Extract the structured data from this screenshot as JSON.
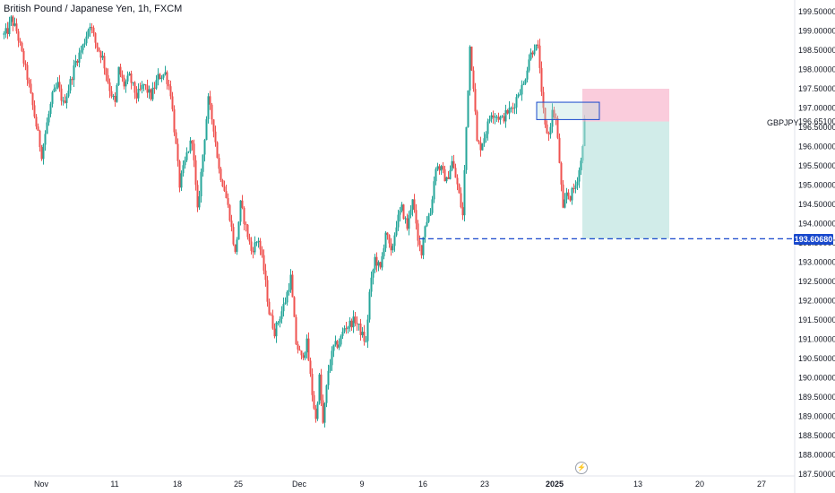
{
  "header": {
    "title": "British Pound / Japanese Yen, 1h, FXCM"
  },
  "symbol": "GBPJPY",
  "colors": {
    "up": "#26a69a",
    "down": "#ef5350",
    "line": "#1848cc",
    "target": "#b2dfdb",
    "stop": "#f8bbd0"
  },
  "icons": {
    "flash": "lightning-icon"
  },
  "chart_data": {
    "type": "candlestick",
    "title": "British Pound / Japanese Yen, 1h, FXCM",
    "xlabel": "",
    "ylabel": "",
    "ylim": [
      187.5,
      199.5
    ],
    "y_ticks": [
      "199.50000",
      "199.00000",
      "198.50000",
      "198.00000",
      "197.50000",
      "197.00000",
      "196.50000",
      "196.00000",
      "195.50000",
      "195.00000",
      "194.50000",
      "194.00000",
      "193.50000",
      "193.00000",
      "192.50000",
      "192.00000",
      "191.50000",
      "191.00000",
      "190.50000",
      "190.00000",
      "189.50000",
      "189.00000",
      "188.50000",
      "188.00000",
      "187.50000"
    ],
    "x_ticks": [
      "Nov",
      "11",
      "18",
      "25",
      "Dec",
      "9",
      "16",
      "23",
      "2025",
      "13",
      "20",
      "27"
    ],
    "x_ticks_bold": [
      "2025"
    ],
    "current_price_label": "196.65100",
    "horizontal_line": {
      "value": 193.6068,
      "label": "193.60680"
    },
    "position": {
      "entry": 196.65,
      "stop": 197.5,
      "target": 193.6068
    },
    "zone": {
      "low": 196.7,
      "high": 197.15
    },
    "series": [
      {
        "name": "GBPJPY",
        "waypoints": [
          {
            "t": 0,
            "p": 198.9
          },
          {
            "t": 4,
            "p": 199.0
          },
          {
            "t": 8,
            "p": 199.3
          },
          {
            "t": 14,
            "p": 199.0
          },
          {
            "t": 20,
            "p": 198.4
          },
          {
            "t": 26,
            "p": 197.8
          },
          {
            "t": 34,
            "p": 196.8
          },
          {
            "t": 42,
            "p": 195.8
          },
          {
            "t": 48,
            "p": 196.6
          },
          {
            "t": 54,
            "p": 197.3
          },
          {
            "t": 60,
            "p": 197.6
          },
          {
            "t": 66,
            "p": 197.1
          },
          {
            "t": 72,
            "p": 197.5
          },
          {
            "t": 80,
            "p": 198.2
          },
          {
            "t": 88,
            "p": 198.6
          },
          {
            "t": 96,
            "p": 199.2
          },
          {
            "t": 102,
            "p": 198.7
          },
          {
            "t": 110,
            "p": 198.3
          },
          {
            "t": 118,
            "p": 197.5
          },
          {
            "t": 124,
            "p": 197.1
          },
          {
            "t": 128,
            "p": 198.0
          },
          {
            "t": 134,
            "p": 197.6
          },
          {
            "t": 140,
            "p": 197.8
          },
          {
            "t": 148,
            "p": 197.3
          },
          {
            "t": 156,
            "p": 197.6
          },
          {
            "t": 164,
            "p": 197.3
          },
          {
            "t": 172,
            "p": 197.8
          },
          {
            "t": 180,
            "p": 197.9
          },
          {
            "t": 186,
            "p": 197.4
          },
          {
            "t": 192,
            "p": 196.0
          },
          {
            "t": 196,
            "p": 195.0
          },
          {
            "t": 204,
            "p": 195.8
          },
          {
            "t": 210,
            "p": 196.2
          },
          {
            "t": 216,
            "p": 194.3
          },
          {
            "t": 222,
            "p": 195.8
          },
          {
            "t": 228,
            "p": 197.2
          },
          {
            "t": 234,
            "p": 196.5
          },
          {
            "t": 240,
            "p": 195.4
          },
          {
            "t": 246,
            "p": 194.9
          },
          {
            "t": 252,
            "p": 194.2
          },
          {
            "t": 258,
            "p": 193.2
          },
          {
            "t": 264,
            "p": 194.5
          },
          {
            "t": 270,
            "p": 193.9
          },
          {
            "t": 276,
            "p": 193.3
          },
          {
            "t": 284,
            "p": 193.6
          },
          {
            "t": 290,
            "p": 192.8
          },
          {
            "t": 296,
            "p": 191.7
          },
          {
            "t": 302,
            "p": 191.2
          },
          {
            "t": 308,
            "p": 191.6
          },
          {
            "t": 314,
            "p": 192.0
          },
          {
            "t": 320,
            "p": 192.6
          },
          {
            "t": 326,
            "p": 190.9
          },
          {
            "t": 332,
            "p": 190.5
          },
          {
            "t": 338,
            "p": 190.9
          },
          {
            "t": 344,
            "p": 189.6
          },
          {
            "t": 348,
            "p": 188.9
          },
          {
            "t": 352,
            "p": 190.0
          },
          {
            "t": 356,
            "p": 188.8
          },
          {
            "t": 362,
            "p": 190.2
          },
          {
            "t": 368,
            "p": 190.8
          },
          {
            "t": 374,
            "p": 190.9
          },
          {
            "t": 380,
            "p": 191.3
          },
          {
            "t": 386,
            "p": 191.4
          },
          {
            "t": 392,
            "p": 191.5
          },
          {
            "t": 398,
            "p": 191.2
          },
          {
            "t": 404,
            "p": 190.9
          },
          {
            "t": 408,
            "p": 192.2
          },
          {
            "t": 414,
            "p": 193.1
          },
          {
            "t": 420,
            "p": 192.8
          },
          {
            "t": 426,
            "p": 193.8
          },
          {
            "t": 432,
            "p": 193.2
          },
          {
            "t": 438,
            "p": 194.0
          },
          {
            "t": 444,
            "p": 194.4
          },
          {
            "t": 450,
            "p": 193.9
          },
          {
            "t": 456,
            "p": 194.7
          },
          {
            "t": 462,
            "p": 193.5
          },
          {
            "t": 466,
            "p": 193.3
          },
          {
            "t": 470,
            "p": 194.0
          },
          {
            "t": 476,
            "p": 194.3
          },
          {
            "t": 482,
            "p": 195.5
          },
          {
            "t": 488,
            "p": 195.4
          },
          {
            "t": 494,
            "p": 195.1
          },
          {
            "t": 500,
            "p": 195.6
          },
          {
            "t": 506,
            "p": 195.0
          },
          {
            "t": 512,
            "p": 194.2
          },
          {
            "t": 516,
            "p": 196.5
          },
          {
            "t": 520,
            "p": 198.6
          },
          {
            "t": 524,
            "p": 197.6
          },
          {
            "t": 528,
            "p": 196.1
          },
          {
            "t": 532,
            "p": 196.0
          },
          {
            "t": 538,
            "p": 196.4
          },
          {
            "t": 544,
            "p": 196.9
          },
          {
            "t": 550,
            "p": 196.8
          },
          {
            "t": 556,
            "p": 196.7
          },
          {
            "t": 562,
            "p": 196.9
          },
          {
            "t": 568,
            "p": 197.0
          },
          {
            "t": 574,
            "p": 197.4
          },
          {
            "t": 580,
            "p": 197.6
          },
          {
            "t": 586,
            "p": 198.3
          },
          {
            "t": 592,
            "p": 198.6
          },
          {
            "t": 597,
            "p": 198.5
          },
          {
            "t": 600,
            "p": 197.3
          },
          {
            "t": 604,
            "p": 196.5
          },
          {
            "t": 608,
            "p": 196.3
          },
          {
            "t": 612,
            "p": 196.9
          },
          {
            "t": 616,
            "p": 196.7
          },
          {
            "t": 620,
            "p": 195.6
          },
          {
            "t": 624,
            "p": 194.3
          },
          {
            "t": 628,
            "p": 194.8
          },
          {
            "t": 632,
            "p": 194.7
          },
          {
            "t": 638,
            "p": 195.0
          },
          {
            "t": 644,
            "p": 195.6
          },
          {
            "t": 648,
            "p": 196.65
          }
        ]
      }
    ]
  }
}
